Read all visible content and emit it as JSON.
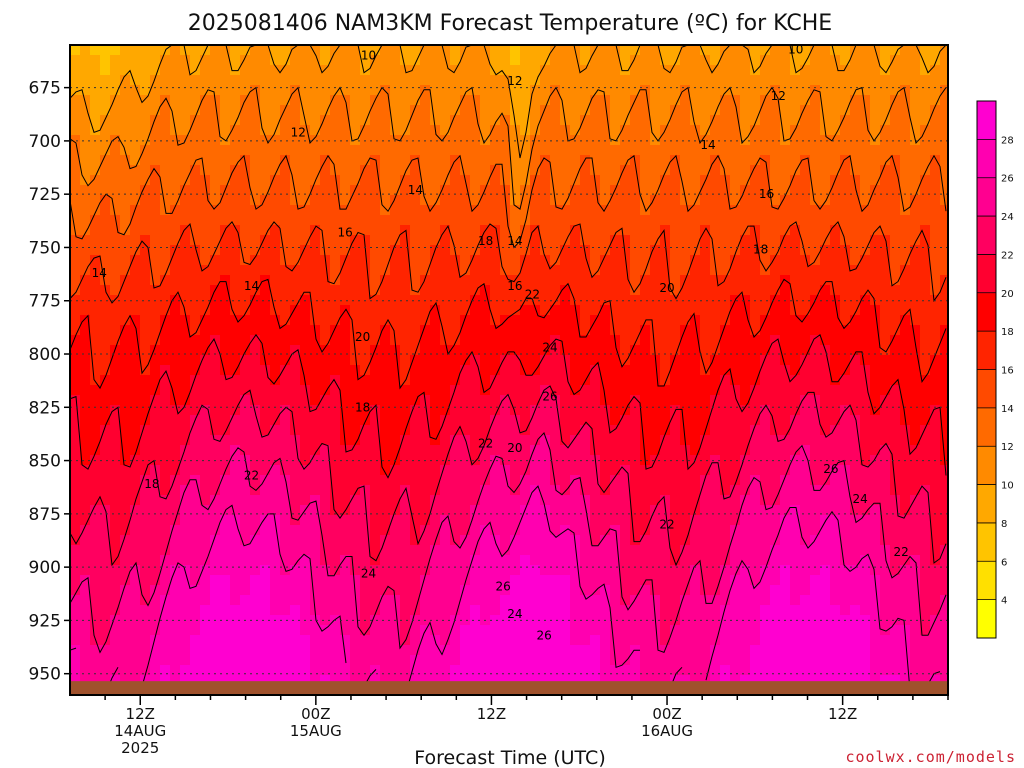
{
  "chart_data": {
    "type": "heatmap",
    "title": "2025081406 NAM3KM Forecast Temperature (ºC) for KCHE",
    "xlabel": "Forecast Time (UTC)",
    "ylabel": "",
    "credit": "coolwx.com/models",
    "y_range": [
      960,
      655
    ],
    "y_ticks": [
      675,
      700,
      725,
      750,
      775,
      800,
      825,
      850,
      875,
      900,
      925,
      950
    ],
    "x_range_hours": [
      6,
      81
    ],
    "x_ticks": [
      {
        "hour": 12,
        "lines": [
          "12Z",
          "14AUG",
          "2025"
        ]
      },
      {
        "hour": 27,
        "lines": [
          "00Z",
          "15AUG"
        ]
      },
      {
        "hour": 42,
        "lines": [
          "12Z"
        ]
      },
      {
        "hour": 57,
        "lines": [
          "00Z",
          "16AUG"
        ]
      },
      {
        "hour": 72,
        "lines": [
          "12Z"
        ]
      }
    ],
    "colorbar": {
      "boundaries": [
        2,
        4,
        6,
        8,
        10,
        12,
        14,
        16,
        18,
        20,
        22,
        24,
        26,
        28,
        30
      ],
      "tick_labels": [
        4,
        6,
        8,
        10,
        12,
        14,
        16,
        18,
        20,
        22,
        24,
        26,
        28
      ],
      "colors": [
        "#ffff00",
        "#ffe000",
        "#ffc400",
        "#ffa800",
        "#ff8a00",
        "#ff6a00",
        "#ff4a00",
        "#ff2400",
        "#ff0000",
        "#ff0030",
        "#ff0060",
        "#ff0090",
        "#ff00b0",
        "#ff00d0"
      ]
    },
    "contour_labels": [
      {
        "text": "10",
        "hour": 31.5,
        "p": 660
      },
      {
        "text": "10",
        "hour": 68,
        "p": 657
      },
      {
        "text": "12",
        "hour": 44,
        "p": 672
      },
      {
        "text": "12",
        "hour": 66.5,
        "p": 679
      },
      {
        "text": "12",
        "hour": 25.5,
        "p": 696
      },
      {
        "text": "14",
        "hour": 60.5,
        "p": 702
      },
      {
        "text": "14",
        "hour": 35.5,
        "p": 723
      },
      {
        "text": "16",
        "hour": 65.5,
        "p": 725
      },
      {
        "text": "16",
        "hour": 29.5,
        "p": 743
      },
      {
        "text": "18",
        "hour": 41.5,
        "p": 747
      },
      {
        "text": "14",
        "hour": 44,
        "p": 747
      },
      {
        "text": "18",
        "hour": 65,
        "p": 751
      },
      {
        "text": "14",
        "hour": 8.5,
        "p": 762
      },
      {
        "text": "14",
        "hour": 21.5,
        "p": 768
      },
      {
        "text": "16",
        "hour": 44,
        "p": 768
      },
      {
        "text": "22",
        "hour": 45.5,
        "p": 772
      },
      {
        "text": "20",
        "hour": 57,
        "p": 769
      },
      {
        "text": "20",
        "hour": 31,
        "p": 792
      },
      {
        "text": "24",
        "hour": 47,
        "p": 797
      },
      {
        "text": "26",
        "hour": 47,
        "p": 820
      },
      {
        "text": "18",
        "hour": 31,
        "p": 825
      },
      {
        "text": "22",
        "hour": 41.5,
        "p": 842
      },
      {
        "text": "20",
        "hour": 44,
        "p": 844
      },
      {
        "text": "26",
        "hour": 71,
        "p": 854
      },
      {
        "text": "18",
        "hour": 13,
        "p": 861
      },
      {
        "text": "22",
        "hour": 21.5,
        "p": 857
      },
      {
        "text": "24",
        "hour": 73.5,
        "p": 868
      },
      {
        "text": "22",
        "hour": 57,
        "p": 880
      },
      {
        "text": "22",
        "hour": 77,
        "p": 893
      },
      {
        "text": "24",
        "hour": 31.5,
        "p": 903
      },
      {
        "text": "26",
        "hour": 43,
        "p": 909
      },
      {
        "text": "24",
        "hour": 44,
        "p": 922
      },
      {
        "text": "26",
        "hour": 46.5,
        "p": 932
      }
    ],
    "terrain_color": "#a0522d"
  }
}
